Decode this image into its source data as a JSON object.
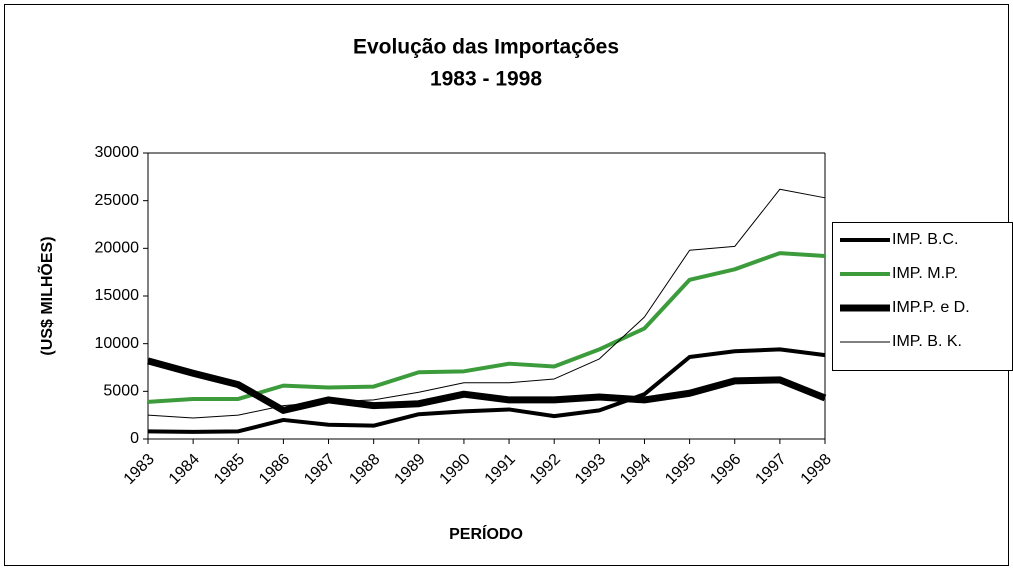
{
  "chart_data": {
    "type": "line",
    "title": "Evolução das Importações",
    "subtitle": "1983 - 1998",
    "x_label": "PERÍODO",
    "y_label": "(US$ MILHÕES)",
    "categories": [
      "1983",
      "1984",
      "1985",
      "1986",
      "1987",
      "1988",
      "1989",
      "1990",
      "1991",
      "1992",
      "1993",
      "1994",
      "1995",
      "1996",
      "1997",
      "1998"
    ],
    "ylim": [
      0,
      30000
    ],
    "yticks": [
      0,
      5000,
      10000,
      15000,
      20000,
      25000,
      30000
    ],
    "legend": "right",
    "series": [
      {
        "name": "IMP. B.C.",
        "color": "#000000",
        "width": 4,
        "values": [
          800,
          750,
          800,
          2000,
          1500,
          1400,
          2600,
          2900,
          3100,
          2400,
          3000,
          4700,
          8600,
          9200,
          9400,
          8800
        ]
      },
      {
        "name": "IMP. M.P.",
        "color": "#3c9c3c",
        "width": 4,
        "values": [
          3900,
          4200,
          4200,
          5600,
          5400,
          5500,
          7000,
          7100,
          7900,
          7600,
          9400,
          11600,
          16700,
          17800,
          19500,
          19200
        ]
      },
      {
        "name": "IMP.P. e D.",
        "color": "#000000",
        "width": 7,
        "values": [
          8200,
          6900,
          5700,
          3000,
          4100,
          3500,
          3700,
          4700,
          4100,
          4100,
          4400,
          4100,
          4800,
          6100,
          6200,
          4300
        ]
      },
      {
        "name": "IMP. B. K.",
        "color": "#000000",
        "width": 1,
        "values": [
          2500,
          2200,
          2500,
          3500,
          3900,
          4100,
          4900,
          5900,
          5900,
          6300,
          8400,
          12800,
          19800,
          20200,
          26200,
          25300
        ]
      }
    ]
  }
}
